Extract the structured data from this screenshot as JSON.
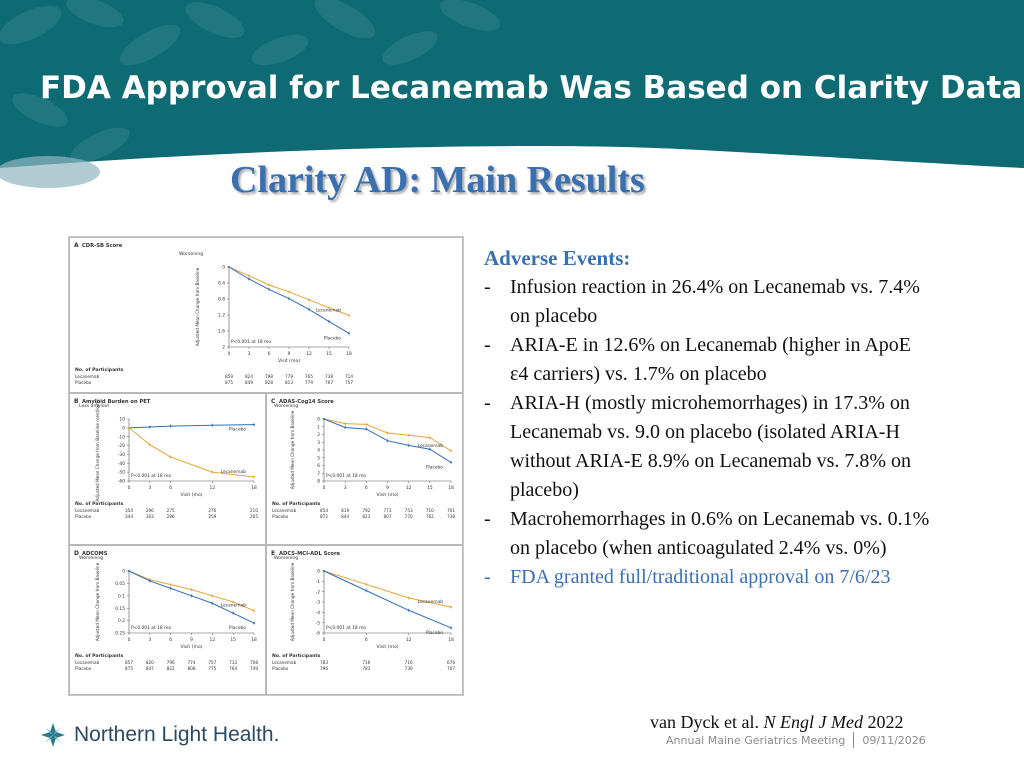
{
  "slide": {
    "title": "FDA Approval for Lecanemab Was Based on Clarity Data",
    "heading": "Clarity AD: Main Results"
  },
  "adverse_events": {
    "title": "Adverse Events:",
    "items": [
      "Infusion reaction in 26.4% on Lecanemab vs. 7.4% on placebo",
      "ARIA-E in 12.6% on Lecanemab (higher in ApoE ε4 carriers) vs. 1.7% on placebo",
      "ARIA-H (mostly microhemorrhages) in 17.3% on Lecanemab vs. 9.0 on placebo (isolated ARIA-H without ARIA-E 8.9% on Lecanemab vs. 7.8% on placebo)",
      "Macrohemorrhages in 0.6% on Lecanemab vs. 0.1% on placebo (when anticoagulated 2.4% vs. 0%)",
      "FDA granted full/traditional approval on 7/6/23"
    ],
    "dash": "-"
  },
  "citation": {
    "authors": "van Dyck et al.",
    "journal": "N Engl J Med",
    "year": "2022"
  },
  "logo": {
    "text": "Northern Light Health.",
    "icon": "compass-star-icon"
  },
  "footer": {
    "event": "Annual Maine Geriatrics Meeting",
    "date": "09/11/2026"
  },
  "colors": {
    "banner_teal": "#0e6a73",
    "heading_blue": "#3a6fb0",
    "lecanemab_line": "#e6a33a",
    "placebo_line": "#2f6fb3"
  },
  "chart_data": [
    {
      "type": "line",
      "panel": "A",
      "title": "CDR-SB Score",
      "ylabel": "Adjusted Mean Change from Baseline",
      "xlabel": "Visit (mo)",
      "direction_label": "Worsening",
      "x": [
        0,
        3,
        6,
        9,
        12,
        15,
        18
      ],
      "yticks": [
        0.0,
        0.4,
        0.8,
        1.2,
        1.6,
        2.0
      ],
      "ylim": [
        0.0,
        2.0
      ],
      "inverted_y": true,
      "series": [
        {
          "name": "Lecanemab",
          "values": [
            0,
            0.22,
            0.45,
            0.62,
            0.82,
            1.02,
            1.21
          ]
        },
        {
          "name": "Placebo",
          "values": [
            0,
            0.3,
            0.56,
            0.79,
            1.06,
            1.36,
            1.66
          ]
        }
      ],
      "annotation": "P<0.001 at 18 mo",
      "participants_label": "No. of Participants",
      "participants": [
        {
          "name": "Lecanemab",
          "counts": [
            "859",
            "824",
            "798",
            "779",
            "765",
            "738",
            "714"
          ]
        },
        {
          "name": "Placebo",
          "counts": [
            "875",
            "849",
            "828",
            "813",
            "779",
            "767",
            "757"
          ]
        }
      ]
    },
    {
      "type": "line",
      "panel": "B",
      "title": "Amyloid Burden on PET",
      "ylabel": "Adjusted Mean Change from Baseline (centiloids)",
      "xlabel": "Visit (mo)",
      "direction_label": "Less amyloid",
      "x": [
        0,
        3,
        6,
        12,
        18
      ],
      "yticks": [
        10,
        0,
        -10,
        -20,
        -30,
        -40,
        -50,
        -60
      ],
      "ylim": [
        -60,
        10
      ],
      "series": [
        {
          "name": "Placebo",
          "values": [
            0,
            1.0,
            2.0,
            3.0,
            3.6
          ]
        },
        {
          "name": "Lecanemab",
          "values": [
            0,
            -19,
            -33,
            -50,
            -55.5
          ]
        }
      ],
      "annotation": "P<0.001 at 18 mo",
      "participants_label": "No. of Participants",
      "participants": [
        {
          "name": "Lecanemab",
          "counts": [
            "354",
            "296",
            "275",
            "276",
            "210"
          ]
        },
        {
          "name": "Placebo",
          "counts": [
            "344",
            "303",
            "286",
            "259",
            "205"
          ]
        }
      ]
    },
    {
      "type": "line",
      "panel": "C",
      "title": "ADAS-Cog14 Score",
      "ylabel": "Adjusted Mean Change from Baseline",
      "xlabel": "Visit (mo)",
      "direction_label": "Worsening",
      "x": [
        0,
        3,
        6,
        9,
        12,
        15,
        18
      ],
      "yticks": [
        0,
        1,
        2,
        3,
        4,
        5,
        6,
        7,
        8
      ],
      "ylim": [
        0,
        8
      ],
      "inverted_y": true,
      "series": [
        {
          "name": "Lecanemab",
          "values": [
            0,
            0.6,
            0.7,
            1.8,
            2.1,
            2.4,
            4.1
          ]
        },
        {
          "name": "Placebo",
          "values": [
            0,
            1.1,
            1.3,
            2.8,
            3.4,
            3.9,
            5.6
          ]
        }
      ],
      "annotation": "P<0.001 at 18 mo",
      "participants_label": "No. of Participants",
      "participants": [
        {
          "name": "Lecanemab",
          "counts": [
            "854",
            "819",
            "792",
            "771",
            "753",
            "710",
            "701"
          ]
        },
        {
          "name": "Placebo",
          "counts": [
            "872",
            "844",
            "823",
            "807",
            "770",
            "762",
            "738"
          ]
        }
      ]
    },
    {
      "type": "line",
      "panel": "D",
      "title": "ADCOMS",
      "ylabel": "Adjusted Mean Change from Baseline",
      "xlabel": "Visit (mo)",
      "direction_label": "Worsening",
      "x": [
        0,
        3,
        6,
        9,
        12,
        15,
        18
      ],
      "yticks": [
        0.0,
        0.05,
        0.1,
        0.15,
        0.2,
        0.25
      ],
      "ylim": [
        0.0,
        0.25
      ],
      "inverted_y": true,
      "series": [
        {
          "name": "Lecanemab",
          "values": [
            0,
            0.035,
            0.055,
            0.075,
            0.1,
            0.125,
            0.16
          ]
        },
        {
          "name": "Placebo",
          "values": [
            0,
            0.04,
            0.07,
            0.1,
            0.13,
            0.17,
            0.21
          ]
        }
      ],
      "annotation": "P<0.001 at 18 mo",
      "participants_label": "No. of Participants",
      "participants": [
        {
          "name": "Lecanemab",
          "counts": [
            "857",
            "820",
            "796",
            "774",
            "757",
            "733",
            "708"
          ]
        },
        {
          "name": "Placebo",
          "counts": [
            "875",
            "847",
            "822",
            "808",
            "775",
            "764",
            "749"
          ]
        }
      ]
    },
    {
      "type": "line",
      "panel": "E",
      "title": "ADCS-MCI-ADL Score",
      "ylabel": "Adjusted Mean Change from Baseline",
      "xlabel": "Visit (mo)",
      "direction_label": "Worsening",
      "x": [
        0,
        6,
        12,
        18
      ],
      "yticks": [
        0,
        -1,
        -2,
        -3,
        -4,
        -5,
        -6
      ],
      "ylim": [
        -6,
        0
      ],
      "series": [
        {
          "name": "Lecanemab",
          "values": [
            0,
            -1.3,
            -2.6,
            -3.5
          ]
        },
        {
          "name": "Placebo",
          "values": [
            0,
            -1.9,
            -3.8,
            -5.5
          ]
        }
      ],
      "annotation": "P<0.001 at 18 mo",
      "participants_label": "No. of Participants",
      "participants": [
        {
          "name": "Lecanemab",
          "counts": [
            "783",
            "716",
            "716",
            "676"
          ]
        },
        {
          "name": "Placebo",
          "counts": [
            "796",
            "783",
            "739",
            "707"
          ]
        }
      ]
    }
  ]
}
